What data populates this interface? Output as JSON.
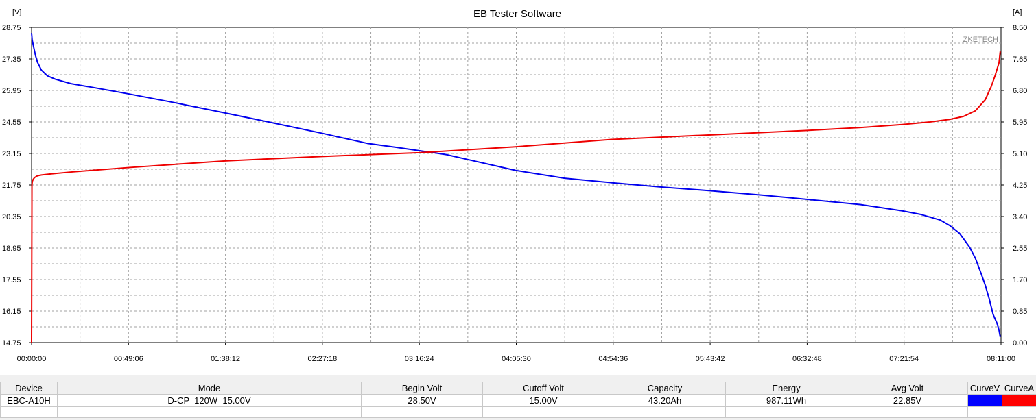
{
  "chart_data": {
    "type": "line",
    "title": "EB Tester Software",
    "watermark": "ZKETECH",
    "y_left_unit": "[V]",
    "y_right_unit": "[A]",
    "ylim_left": [
      14.75,
      28.75
    ],
    "ylim_right": [
      0.0,
      8.5
    ],
    "yticks_left": [
      "28.75",
      "27.35",
      "25.95",
      "24.55",
      "23.15",
      "21.75",
      "20.35",
      "18.95",
      "17.55",
      "16.15",
      "14.75"
    ],
    "yticks_right": [
      "8.50",
      "7.65",
      "6.80",
      "5.95",
      "5.10",
      "4.25",
      "3.40",
      "2.55",
      "1.70",
      "0.85",
      "0.00"
    ],
    "x_total_minutes": 491,
    "xticks": [
      "00:00:00",
      "00:49:06",
      "01:38:12",
      "02:27:18",
      "03:16:24",
      "04:05:30",
      "04:54:36",
      "05:43:42",
      "06:32:48",
      "07:21:54",
      "08:11:00"
    ],
    "grid": true,
    "series": [
      {
        "name": "CurveV",
        "color": "#0000ee",
        "axis": "left",
        "x": [
          0,
          0.3,
          1,
          2,
          3,
          5,
          8,
          12,
          20,
          30,
          49,
          70,
          98,
          120,
          147,
          170,
          185,
          196,
          210,
          220,
          245,
          270,
          294,
          320,
          343,
          370,
          392,
          420,
          441,
          450,
          460,
          465,
          470,
          475,
          478,
          481,
          483,
          485,
          487,
          489,
          490,
          490.6
        ],
        "values": [
          28.5,
          28.2,
          27.9,
          27.5,
          27.2,
          26.85,
          26.6,
          26.45,
          26.25,
          26.1,
          25.8,
          25.45,
          24.95,
          24.55,
          24.05,
          23.6,
          23.42,
          23.28,
          23.1,
          22.9,
          22.4,
          22.05,
          21.85,
          21.65,
          21.5,
          21.3,
          21.12,
          20.88,
          20.6,
          20.45,
          20.2,
          19.95,
          19.6,
          19.0,
          18.5,
          17.8,
          17.3,
          16.7,
          16.0,
          15.6,
          15.3,
          15.0
        ]
      },
      {
        "name": "CurveA",
        "color": "#ee0000",
        "axis": "right",
        "x": [
          0,
          0.2,
          0.4,
          0.8,
          1.5,
          3,
          5,
          10,
          20,
          49,
          98,
          147,
          196,
          245,
          294,
          343,
          392,
          420,
          441,
          455,
          465,
          472,
          478,
          483,
          486,
          488,
          490,
          490.6
        ],
        "values": [
          0.0,
          4.25,
          4.35,
          4.4,
          4.45,
          4.5,
          4.52,
          4.55,
          4.6,
          4.72,
          4.9,
          5.02,
          5.12,
          5.28,
          5.48,
          5.6,
          5.72,
          5.8,
          5.88,
          5.95,
          6.02,
          6.1,
          6.25,
          6.55,
          6.9,
          7.2,
          7.55,
          7.85
        ]
      }
    ]
  },
  "results": {
    "headers": [
      "Device",
      "Mode",
      "Begin Volt",
      "Cutoff Volt",
      "Capacity",
      "Energy",
      "Avg Volt",
      "CurveV",
      "CurveA"
    ],
    "row": {
      "device": "EBC-A10H",
      "mode": "D-CP  120W  15.00V",
      "begin_volt": "28.50V",
      "cutoff_volt": "15.00V",
      "capacity": "43.20Ah",
      "energy": "987.11Wh",
      "avg_volt": "22.85V"
    },
    "curve_colors": {
      "curve_v": "#0000ff",
      "curve_a": "#ff0000"
    }
  }
}
